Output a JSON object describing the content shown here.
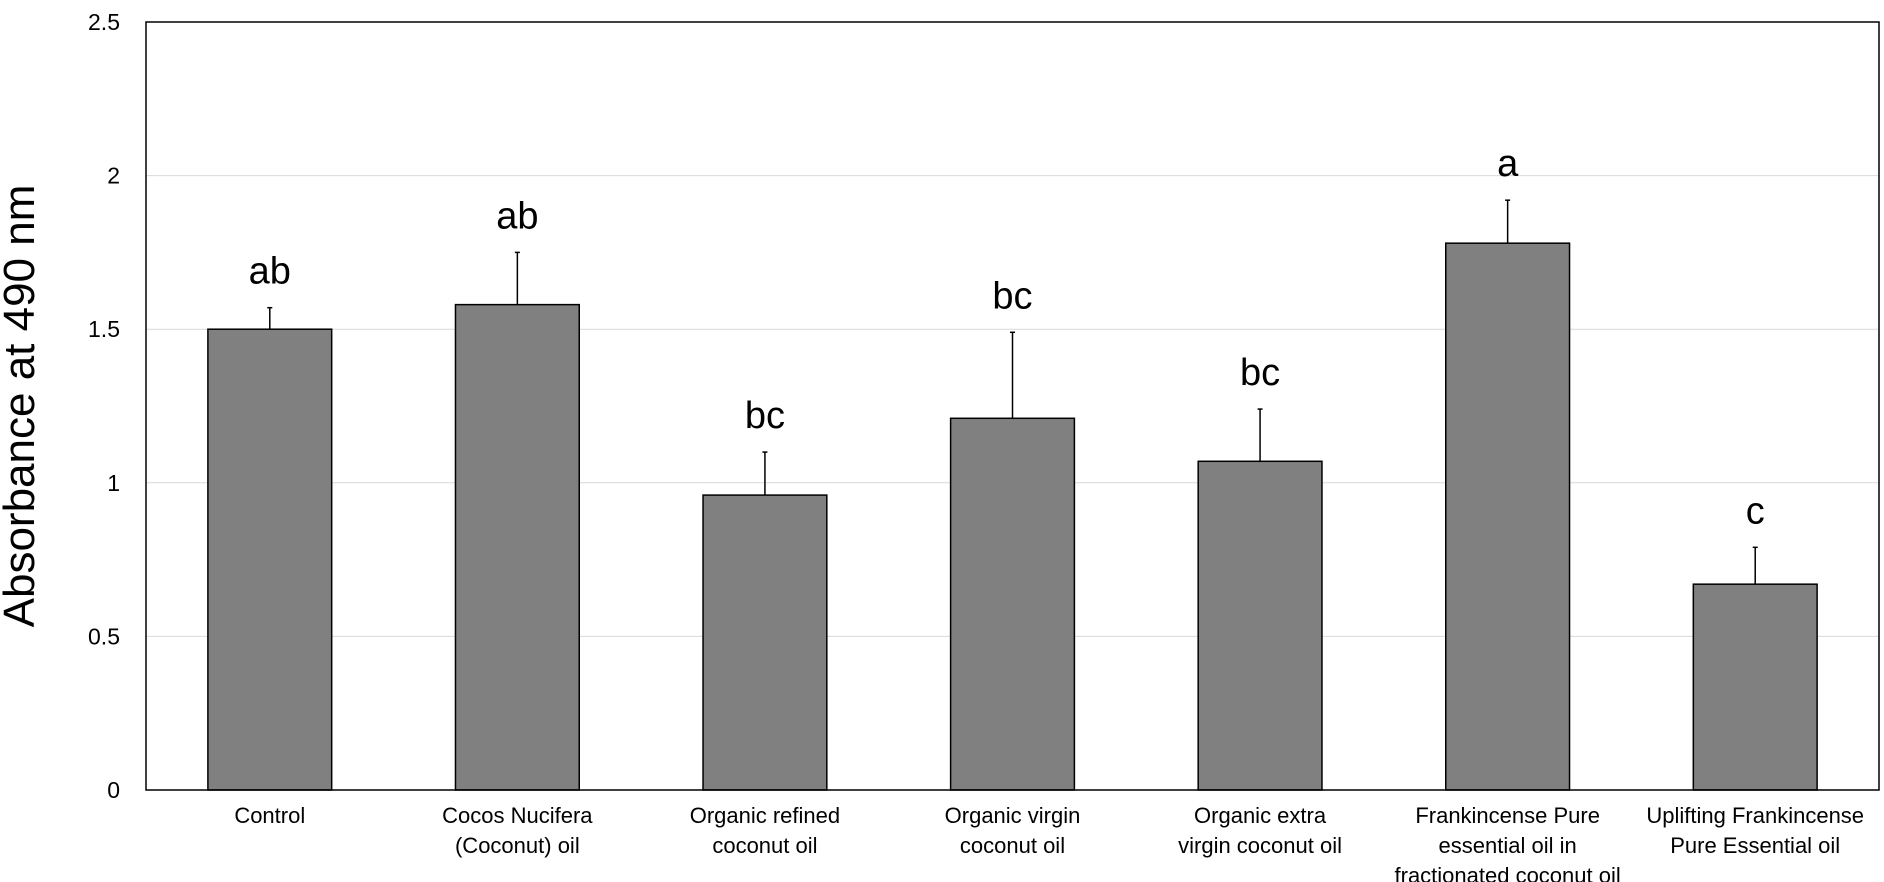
{
  "chart_data": {
    "type": "bar",
    "title": "",
    "xlabel": "",
    "ylabel": "Absorbance at 490 nm",
    "ylim": [
      0,
      2.5
    ],
    "yticks": [
      0,
      0.5,
      1,
      1.5,
      2,
      2.5
    ],
    "ytick_labels": [
      "0",
      "0.5",
      "1",
      "1.5",
      "2",
      "2.5"
    ],
    "grid": "horizontal",
    "legend": "none",
    "bar_color": "#808080",
    "categories": [
      [
        "Control"
      ],
      [
        "Cocos Nucifera",
        "(Coconut) oil"
      ],
      [
        "Organic refined",
        "coconut oil"
      ],
      [
        "Organic virgin",
        "coconut oil"
      ],
      [
        "Organic extra",
        "virgin coconut oil"
      ],
      [
        "Frankincense Pure",
        "essential oil in",
        "fractionated coconut oil"
      ],
      [
        "Uplifting Frankincense",
        "Pure Essential oil"
      ]
    ],
    "values": [
      1.5,
      1.58,
      0.96,
      1.21,
      1.07,
      1.78,
      0.67
    ],
    "errors": [
      0.07,
      0.17,
      0.14,
      0.28,
      0.17,
      0.14,
      0.12
    ],
    "significance_labels": [
      "ab",
      "ab",
      "bc",
      "bc",
      "bc",
      "a",
      "c"
    ]
  }
}
